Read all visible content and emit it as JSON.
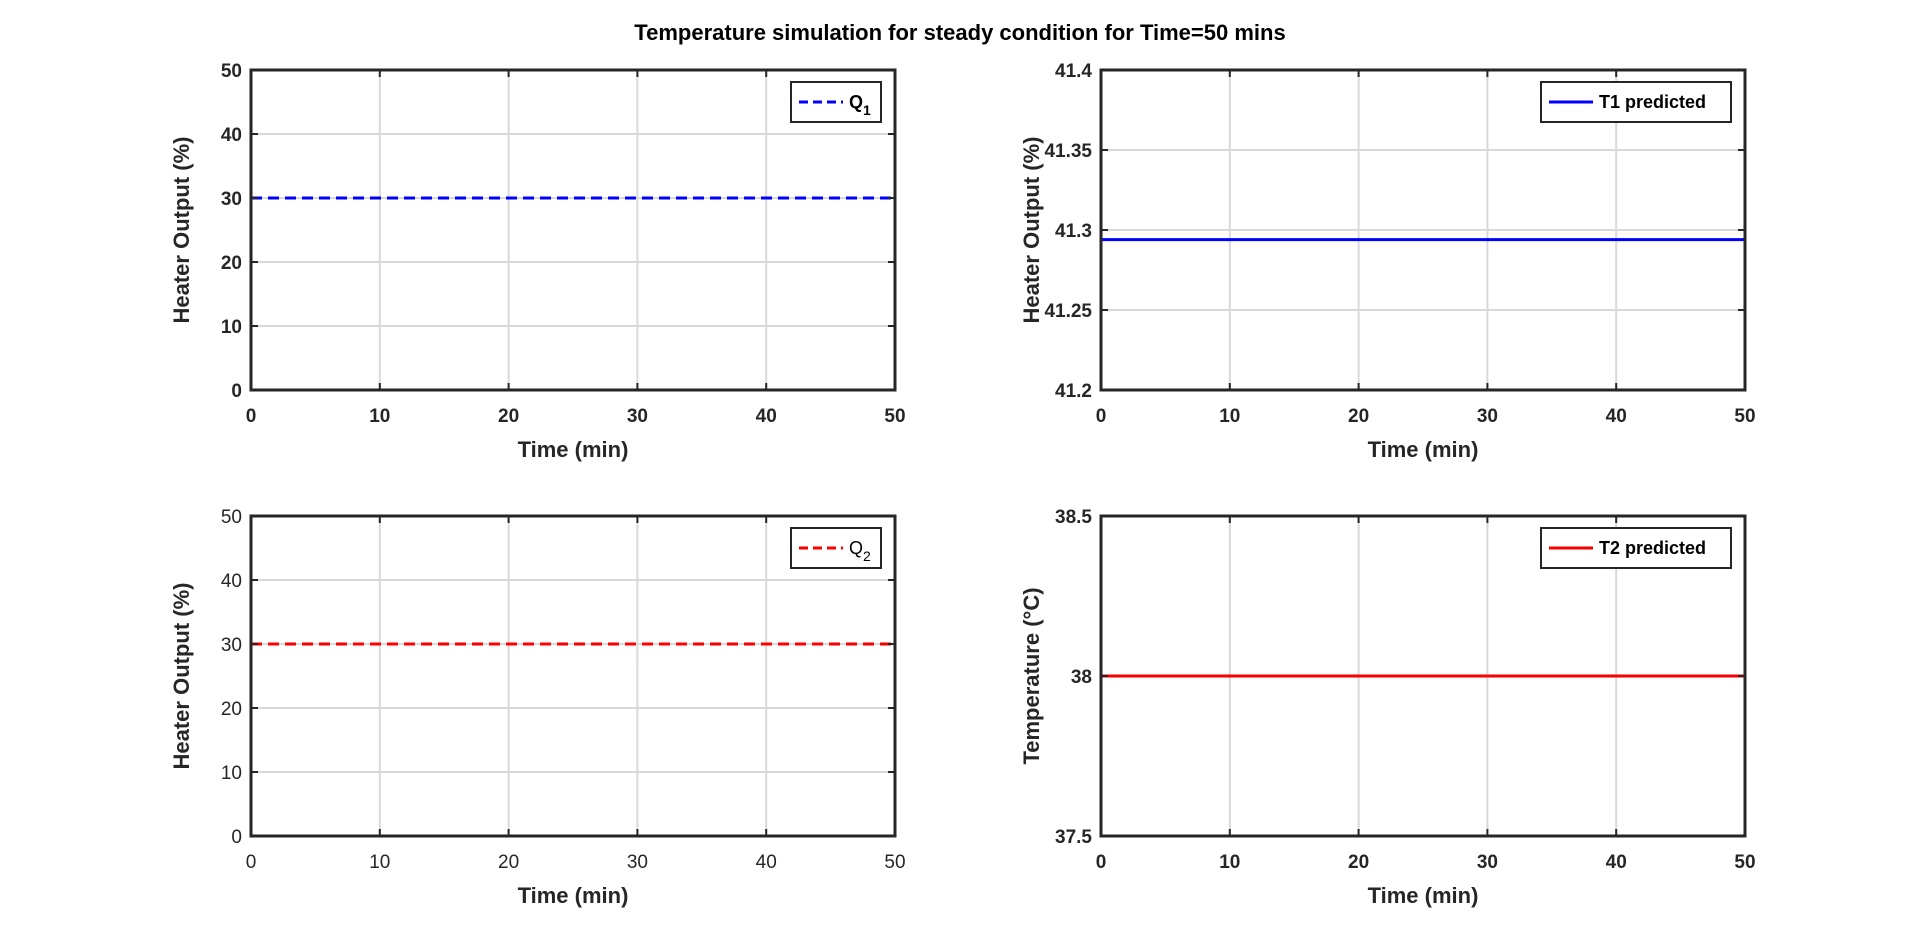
{
  "figure": {
    "suptitle": "Temperature simulation for steady condition for Time=50 mins"
  },
  "chart_data": [
    {
      "type": "line",
      "xlabel": "Time (min)",
      "ylabel": "Heater Output (%)",
      "xlim": [
        0,
        50
      ],
      "ylim": [
        0,
        50
      ],
      "xticks": [
        0,
        10,
        20,
        30,
        40,
        50
      ],
      "yticks": [
        0,
        10,
        20,
        30,
        40,
        50
      ],
      "ytick_labels": [
        "0",
        "10",
        "20",
        "30",
        "40",
        "50"
      ],
      "ticks_bold": true,
      "grid": true,
      "legend_position": "top-right",
      "series": [
        {
          "name": "Q",
          "name_subscript": "1",
          "x": [
            0,
            50
          ],
          "y": [
            30,
            30
          ],
          "color": "#0000ff",
          "dashed": true
        }
      ]
    },
    {
      "type": "line",
      "xlabel": "Time (min)",
      "ylabel": "Heater Output (%)",
      "xlim": [
        0,
        50
      ],
      "ylim": [
        41.2,
        41.4
      ],
      "xticks": [
        0,
        10,
        20,
        30,
        40,
        50
      ],
      "yticks": [
        41.2,
        41.25,
        41.3,
        41.35,
        41.4
      ],
      "ytick_labels": [
        "41.2",
        "41.25",
        "41.3",
        "41.35",
        "41.4"
      ],
      "ticks_bold": true,
      "grid": true,
      "legend_position": "top-right",
      "series": [
        {
          "name": "T1 predicted",
          "x": [
            0,
            50
          ],
          "y": [
            41.294,
            41.294
          ],
          "color": "#0000ff",
          "dashed": false
        }
      ]
    },
    {
      "type": "line",
      "xlabel": "Time (min)",
      "ylabel": "Heater Output (%)",
      "xlim": [
        0,
        50
      ],
      "ylim": [
        0,
        50
      ],
      "xticks": [
        0,
        10,
        20,
        30,
        40,
        50
      ],
      "yticks": [
        0,
        10,
        20,
        30,
        40,
        50
      ],
      "ytick_labels": [
        "0",
        "10",
        "20",
        "30",
        "40",
        "50"
      ],
      "ticks_bold": false,
      "grid": true,
      "legend_position": "top-right",
      "series": [
        {
          "name": "Q",
          "name_subscript": "2",
          "x": [
            0,
            50
          ],
          "y": [
            30,
            30
          ],
          "color": "#ff0000",
          "dashed": true
        }
      ]
    },
    {
      "type": "line",
      "xlabel": "Time (min)",
      "ylabel": "Temperature (°C)",
      "xlim": [
        0,
        50
      ],
      "ylim": [
        37.5,
        38.5
      ],
      "xticks": [
        0,
        10,
        20,
        30,
        40,
        50
      ],
      "yticks": [
        37.5,
        38,
        38.5
      ],
      "ytick_labels": [
        "37.5",
        "38",
        "38.5"
      ],
      "ticks_bold": true,
      "grid": true,
      "legend_position": "top-right",
      "series": [
        {
          "name": "T2 predicted",
          "x": [
            0,
            50
          ],
          "y": [
            38.0,
            38.0
          ],
          "color": "#ff0000",
          "dashed": false
        }
      ]
    }
  ]
}
